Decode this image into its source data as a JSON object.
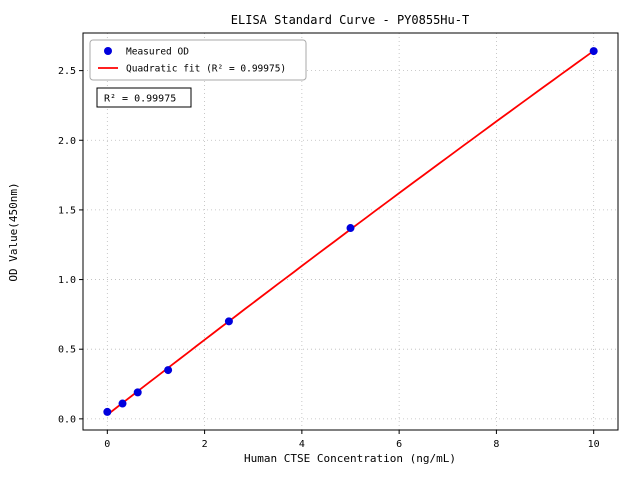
{
  "chart_data": {
    "type": "scatter",
    "title": "ELISA Standard Curve - PY0855Hu-T",
    "xlabel": "Human CTSE Concentration (ng/mL)",
    "ylabel": "OD Value(450nm)",
    "xlim": [
      -0.5,
      10.5
    ],
    "ylim": [
      -0.08,
      2.77
    ],
    "xticks": [
      0,
      2,
      4,
      6,
      8,
      10
    ],
    "yticks": [
      0.0,
      0.5,
      1.0,
      1.5,
      2.0,
      2.5
    ],
    "grid": true,
    "legend_position": "upper-left",
    "legend": [
      "Measured OD",
      "Quadratic fit (R² = 0.99975)"
    ],
    "annotation": "R² = 0.99975",
    "series": [
      {
        "name": "Measured OD",
        "type": "scatter",
        "color": "#0000dd",
        "points": [
          [
            0,
            0.05
          ],
          [
            0.3125,
            0.11
          ],
          [
            0.625,
            0.19
          ],
          [
            1.25,
            0.35
          ],
          [
            2.5,
            0.7
          ],
          [
            5,
            1.37
          ],
          [
            10,
            2.64
          ]
        ]
      },
      {
        "name": "Quadratic fit",
        "type": "line",
        "color": "#ff0000",
        "fit": "quadratic",
        "r_squared": 0.99975
      }
    ],
    "style": {
      "grid_color": "#bbbbbb",
      "frame_color": "#000000",
      "background": "#ffffff"
    }
  }
}
